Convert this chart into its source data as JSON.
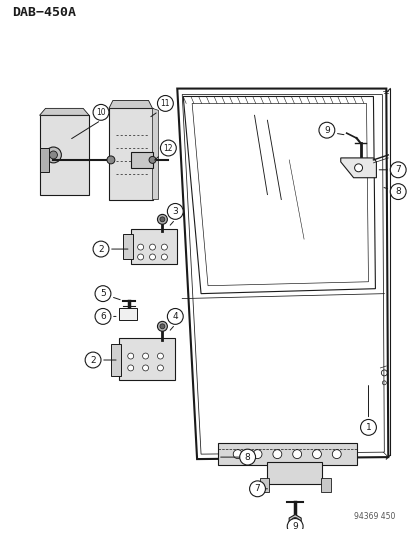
{
  "title": "DAB−450A",
  "watermark": "94369 450",
  "bg_color": "#ffffff",
  "fig_width": 4.14,
  "fig_height": 5.33,
  "dpi": 100,
  "col": "#1a1a1a"
}
